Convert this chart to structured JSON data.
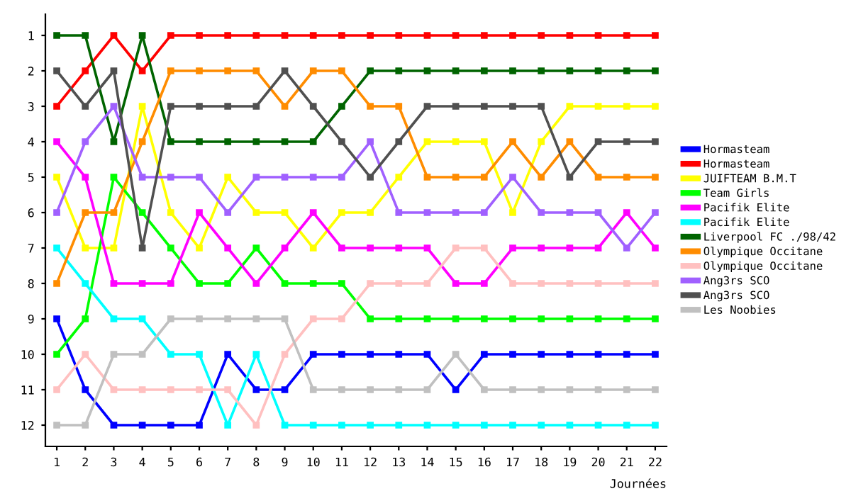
{
  "chart_data": {
    "type": "line",
    "xlabel": "Journées",
    "x": [
      1,
      2,
      3,
      4,
      5,
      6,
      7,
      8,
      9,
      10,
      11,
      12,
      13,
      14,
      15,
      16,
      17,
      18,
      19,
      20,
      21,
      22
    ],
    "xlim": [
      0.6,
      22.4
    ],
    "xticks": [
      1,
      2,
      3,
      4,
      5,
      6,
      7,
      8,
      9,
      10,
      11,
      12,
      13,
      14,
      15,
      16,
      17,
      18,
      19,
      20,
      21,
      22
    ],
    "ylim": [
      12.6,
      0.4
    ],
    "yticks": [
      1,
      2,
      3,
      4,
      5,
      6,
      7,
      8,
      9,
      10,
      11,
      12
    ],
    "grid": false,
    "legend": "right",
    "marker": "square",
    "line_style": "solid",
    "series": [
      {
        "name": "Hormasteam",
        "color": "#0000ff",
        "values": [
          9,
          11,
          12,
          12,
          12,
          12,
          10,
          11,
          11,
          10,
          10,
          10,
          10,
          10,
          11,
          10,
          10,
          10,
          10,
          10,
          10,
          10
        ]
      },
      {
        "name": "Hormasteam",
        "color": "#ff0000",
        "values": [
          3,
          2,
          1,
          2,
          1,
          1,
          1,
          1,
          1,
          1,
          1,
          1,
          1,
          1,
          1,
          1,
          1,
          1,
          1,
          1,
          1,
          1
        ]
      },
      {
        "name": "JUIFTEAM B.M.T",
        "color": "#ffff00",
        "values": [
          5,
          7,
          7,
          3,
          6,
          7,
          5,
          6,
          6,
          7,
          6,
          6,
          5,
          4,
          4,
          4,
          6,
          4,
          3,
          3,
          3,
          3
        ]
      },
      {
        "name": "Team Girls",
        "color": "#00ff00",
        "values": [
          10,
          9,
          5,
          6,
          7,
          8,
          8,
          7,
          8,
          8,
          8,
          9,
          9,
          9,
          9,
          9,
          9,
          9,
          9,
          9,
          9,
          9
        ]
      },
      {
        "name": "Pacifik Elite",
        "color": "#ff00ff",
        "values": [
          4,
          5,
          8,
          8,
          8,
          6,
          7,
          8,
          7,
          6,
          7,
          7,
          7,
          7,
          8,
          8,
          7,
          7,
          7,
          7,
          6,
          7
        ]
      },
      {
        "name": "Pacifik Elite",
        "color": "#00ffff",
        "values": [
          7,
          8,
          9,
          9,
          10,
          10,
          12,
          10,
          12,
          12,
          12,
          12,
          12,
          12,
          12,
          12,
          12,
          12,
          12,
          12,
          12,
          12
        ]
      },
      {
        "name": "Liverpool FC ./98/42",
        "color": "#006400",
        "values": [
          1,
          1,
          4,
          1,
          4,
          4,
          4,
          4,
          4,
          4,
          3,
          2,
          2,
          2,
          2,
          2,
          2,
          2,
          2,
          2,
          2,
          2
        ]
      },
      {
        "name": "Olympique Occitane",
        "color": "#ff8c00",
        "values": [
          8,
          6,
          6,
          4,
          2,
          2,
          2,
          2,
          3,
          2,
          2,
          3,
          3,
          5,
          5,
          5,
          4,
          5,
          4,
          5,
          5,
          5
        ]
      },
      {
        "name": "Olympique Occitane",
        "color": "#ffc0c0",
        "values": [
          11,
          10,
          11,
          11,
          11,
          11,
          11,
          12,
          10,
          9,
          9,
          8,
          8,
          8,
          7,
          7,
          8,
          8,
          8,
          8,
          8,
          8
        ]
      },
      {
        "name": "Ang3rs SCO",
        "color": "#a060ff",
        "values": [
          6,
          4,
          3,
          5,
          5,
          5,
          6,
          5,
          5,
          5,
          5,
          4,
          6,
          6,
          6,
          6,
          5,
          6,
          6,
          6,
          7,
          6
        ]
      },
      {
        "name": "Ang3rs SCO",
        "color": "#505050",
        "values": [
          2,
          3,
          2,
          7,
          3,
          3,
          3,
          3,
          2,
          3,
          4,
          5,
          4,
          3,
          3,
          3,
          3,
          3,
          5,
          4,
          4,
          4
        ]
      },
      {
        "name": "Les Noobies",
        "color": "#c0c0c0",
        "values": [
          12,
          12,
          10,
          10,
          9,
          9,
          9,
          9,
          9,
          11,
          11,
          11,
          11,
          11,
          10,
          11,
          11,
          11,
          11,
          11,
          11,
          11
        ]
      }
    ]
  }
}
